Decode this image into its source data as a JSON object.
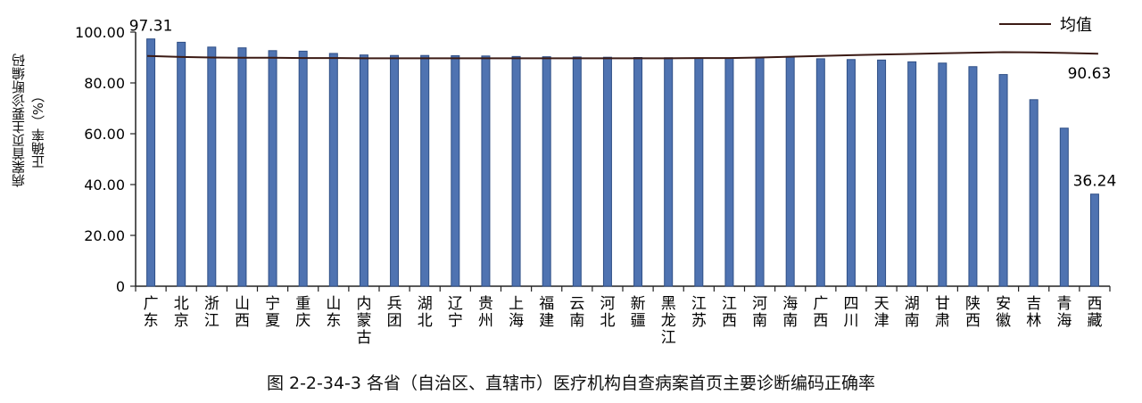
{
  "chart_data": {
    "type": "bar",
    "title": "图 2-2-34-3   各省（自治区、直辖市）医疗机构自查病案首页主要诊断编码正确率",
    "ylabel_line1": "病案首页主要诊断编码",
    "ylabel_line2": "正确率（%）",
    "ylim": [
      0,
      100
    ],
    "yticks": [
      "0",
      "20.00",
      "40.00",
      "60.00",
      "80.00",
      "100.00"
    ],
    "ytick_values": [
      0,
      20,
      40,
      60,
      80,
      100
    ],
    "categories": [
      "广东",
      "北京",
      "浙江",
      "山西",
      "宁夏",
      "重庆",
      "山东",
      "内蒙古",
      "兵团",
      "湖北",
      "辽宁",
      "贵州",
      "上海",
      "福建",
      "云南",
      "河北",
      "新疆",
      "黑龙江",
      "江苏",
      "江西",
      "河南",
      "海南",
      "广西",
      "四川",
      "天津",
      "湖南",
      "甘肃",
      "陕西",
      "安徽",
      "吉林",
      "青海",
      "西藏"
    ],
    "series": [
      {
        "values": [
          97.31,
          96.0,
          94.1,
          93.8,
          92.7,
          92.5,
          91.6,
          91.0,
          90.8,
          90.8,
          90.7,
          90.6,
          90.4,
          90.3,
          90.2,
          90.1,
          90.0,
          89.9,
          89.8,
          89.8,
          89.9,
          90.2,
          89.5,
          89.2,
          89.0,
          88.3,
          87.8,
          86.4,
          83.3,
          73.4,
          62.2,
          36.24
        ]
      },
      {
        "name": "均值",
        "values": [
          90.6,
          90.2,
          90.0,
          89.9,
          89.9,
          89.8,
          89.8,
          89.7,
          89.7,
          89.7,
          89.7,
          89.7,
          89.7,
          89.7,
          89.7,
          89.7,
          89.7,
          89.7,
          89.8,
          89.8,
          90.0,
          90.3,
          90.6,
          90.9,
          91.2,
          91.4,
          91.7,
          91.9,
          92.1,
          92.0,
          91.8,
          91.5
        ]
      }
    ],
    "data_labels": {
      "first": "97.31",
      "last": "36.24",
      "mean": "90.63"
    },
    "legend": {
      "label": "均值",
      "position": "top-right"
    },
    "colors": {
      "bar": "#4f73b1",
      "bar_dark": "#2f4f86",
      "mean_line": "#3b1a14",
      "axis": "#222222"
    },
    "grid": false
  }
}
